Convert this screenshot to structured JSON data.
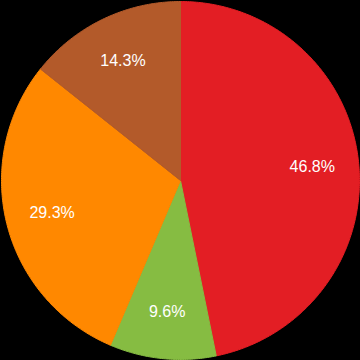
{
  "chart_data": {
    "type": "pie",
    "values": [
      46.8,
      9.6,
      29.3,
      14.3
    ],
    "value_labels": [
      "46.8%",
      "9.6%",
      "29.3%",
      "14.3%"
    ],
    "colors": [
      "#e31e24",
      "#86bc42",
      "#ff8800",
      "#b35a2a"
    ],
    "data_labels": true
  }
}
